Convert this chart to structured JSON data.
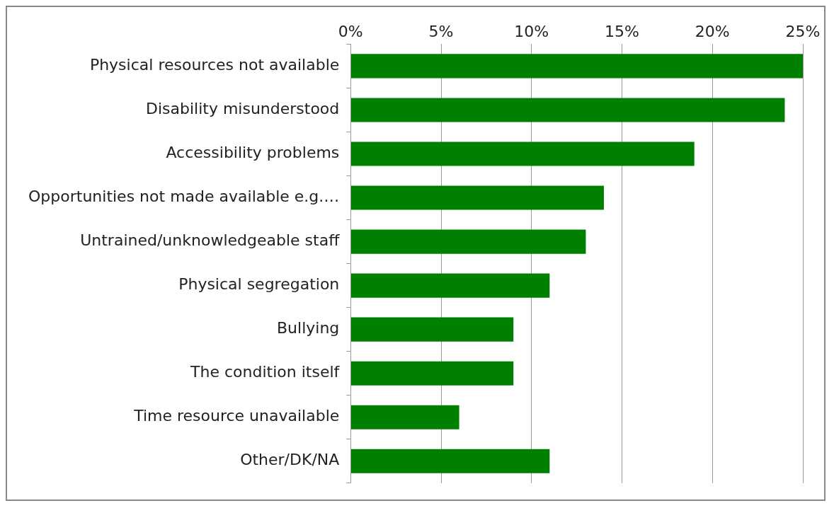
{
  "chart_data": {
    "type": "bar",
    "orientation": "horizontal",
    "categories": [
      "Physical resources not available",
      "Disability misunderstood",
      "Accessibility problems",
      "Opportunities not made available e.g.…",
      "Untrained/unknowledgeable staff",
      "Physical segregation",
      "Bullying",
      "The condition itself",
      "Time resource unavailable",
      "Other/DK/NA"
    ],
    "values": [
      25,
      24,
      19,
      14,
      13,
      11,
      9,
      9,
      6,
      11
    ],
    "color": "#008000",
    "xlim": [
      0,
      25
    ],
    "xticks": [
      {
        "value": 0,
        "label": "0%"
      },
      {
        "value": 5,
        "label": "5%"
      },
      {
        "value": 10,
        "label": "10%"
      },
      {
        "value": 15,
        "label": "15%"
      },
      {
        "value": 20,
        "label": "20%"
      },
      {
        "value": 25,
        "label": "25%"
      }
    ],
    "grid": "x",
    "legend": false
  }
}
